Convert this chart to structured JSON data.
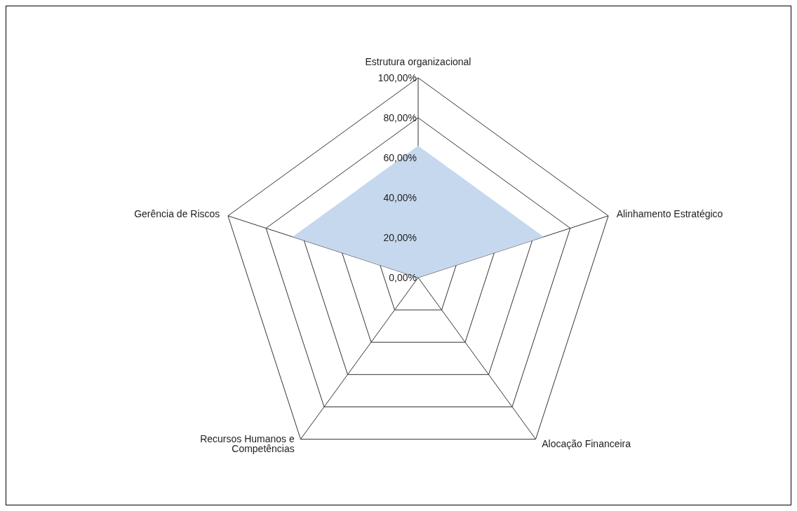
{
  "chart_data": {
    "type": "radar",
    "categories": [
      "Estrutura organizacional",
      "Alinhamento Estratégico",
      "Alocação Financeira",
      "Recursos Humanos e Competências",
      "Gerência de Riscos"
    ],
    "series": [
      {
        "color": "#c6d8ee",
        "values": [
          66,
          66,
          0,
          0,
          66
        ]
      }
    ],
    "ylim": [
      0,
      100
    ],
    "yticks": [
      {
        "value": 0,
        "label": "0,00%"
      },
      {
        "value": 20,
        "label": "20,00%"
      },
      {
        "value": 40,
        "label": "40,00%"
      },
      {
        "value": 60,
        "label": "60,00%"
      },
      {
        "value": 80,
        "label": "80,00%"
      },
      {
        "value": 100,
        "label": "100,00%"
      }
    ],
    "grid": true,
    "legend": false
  }
}
